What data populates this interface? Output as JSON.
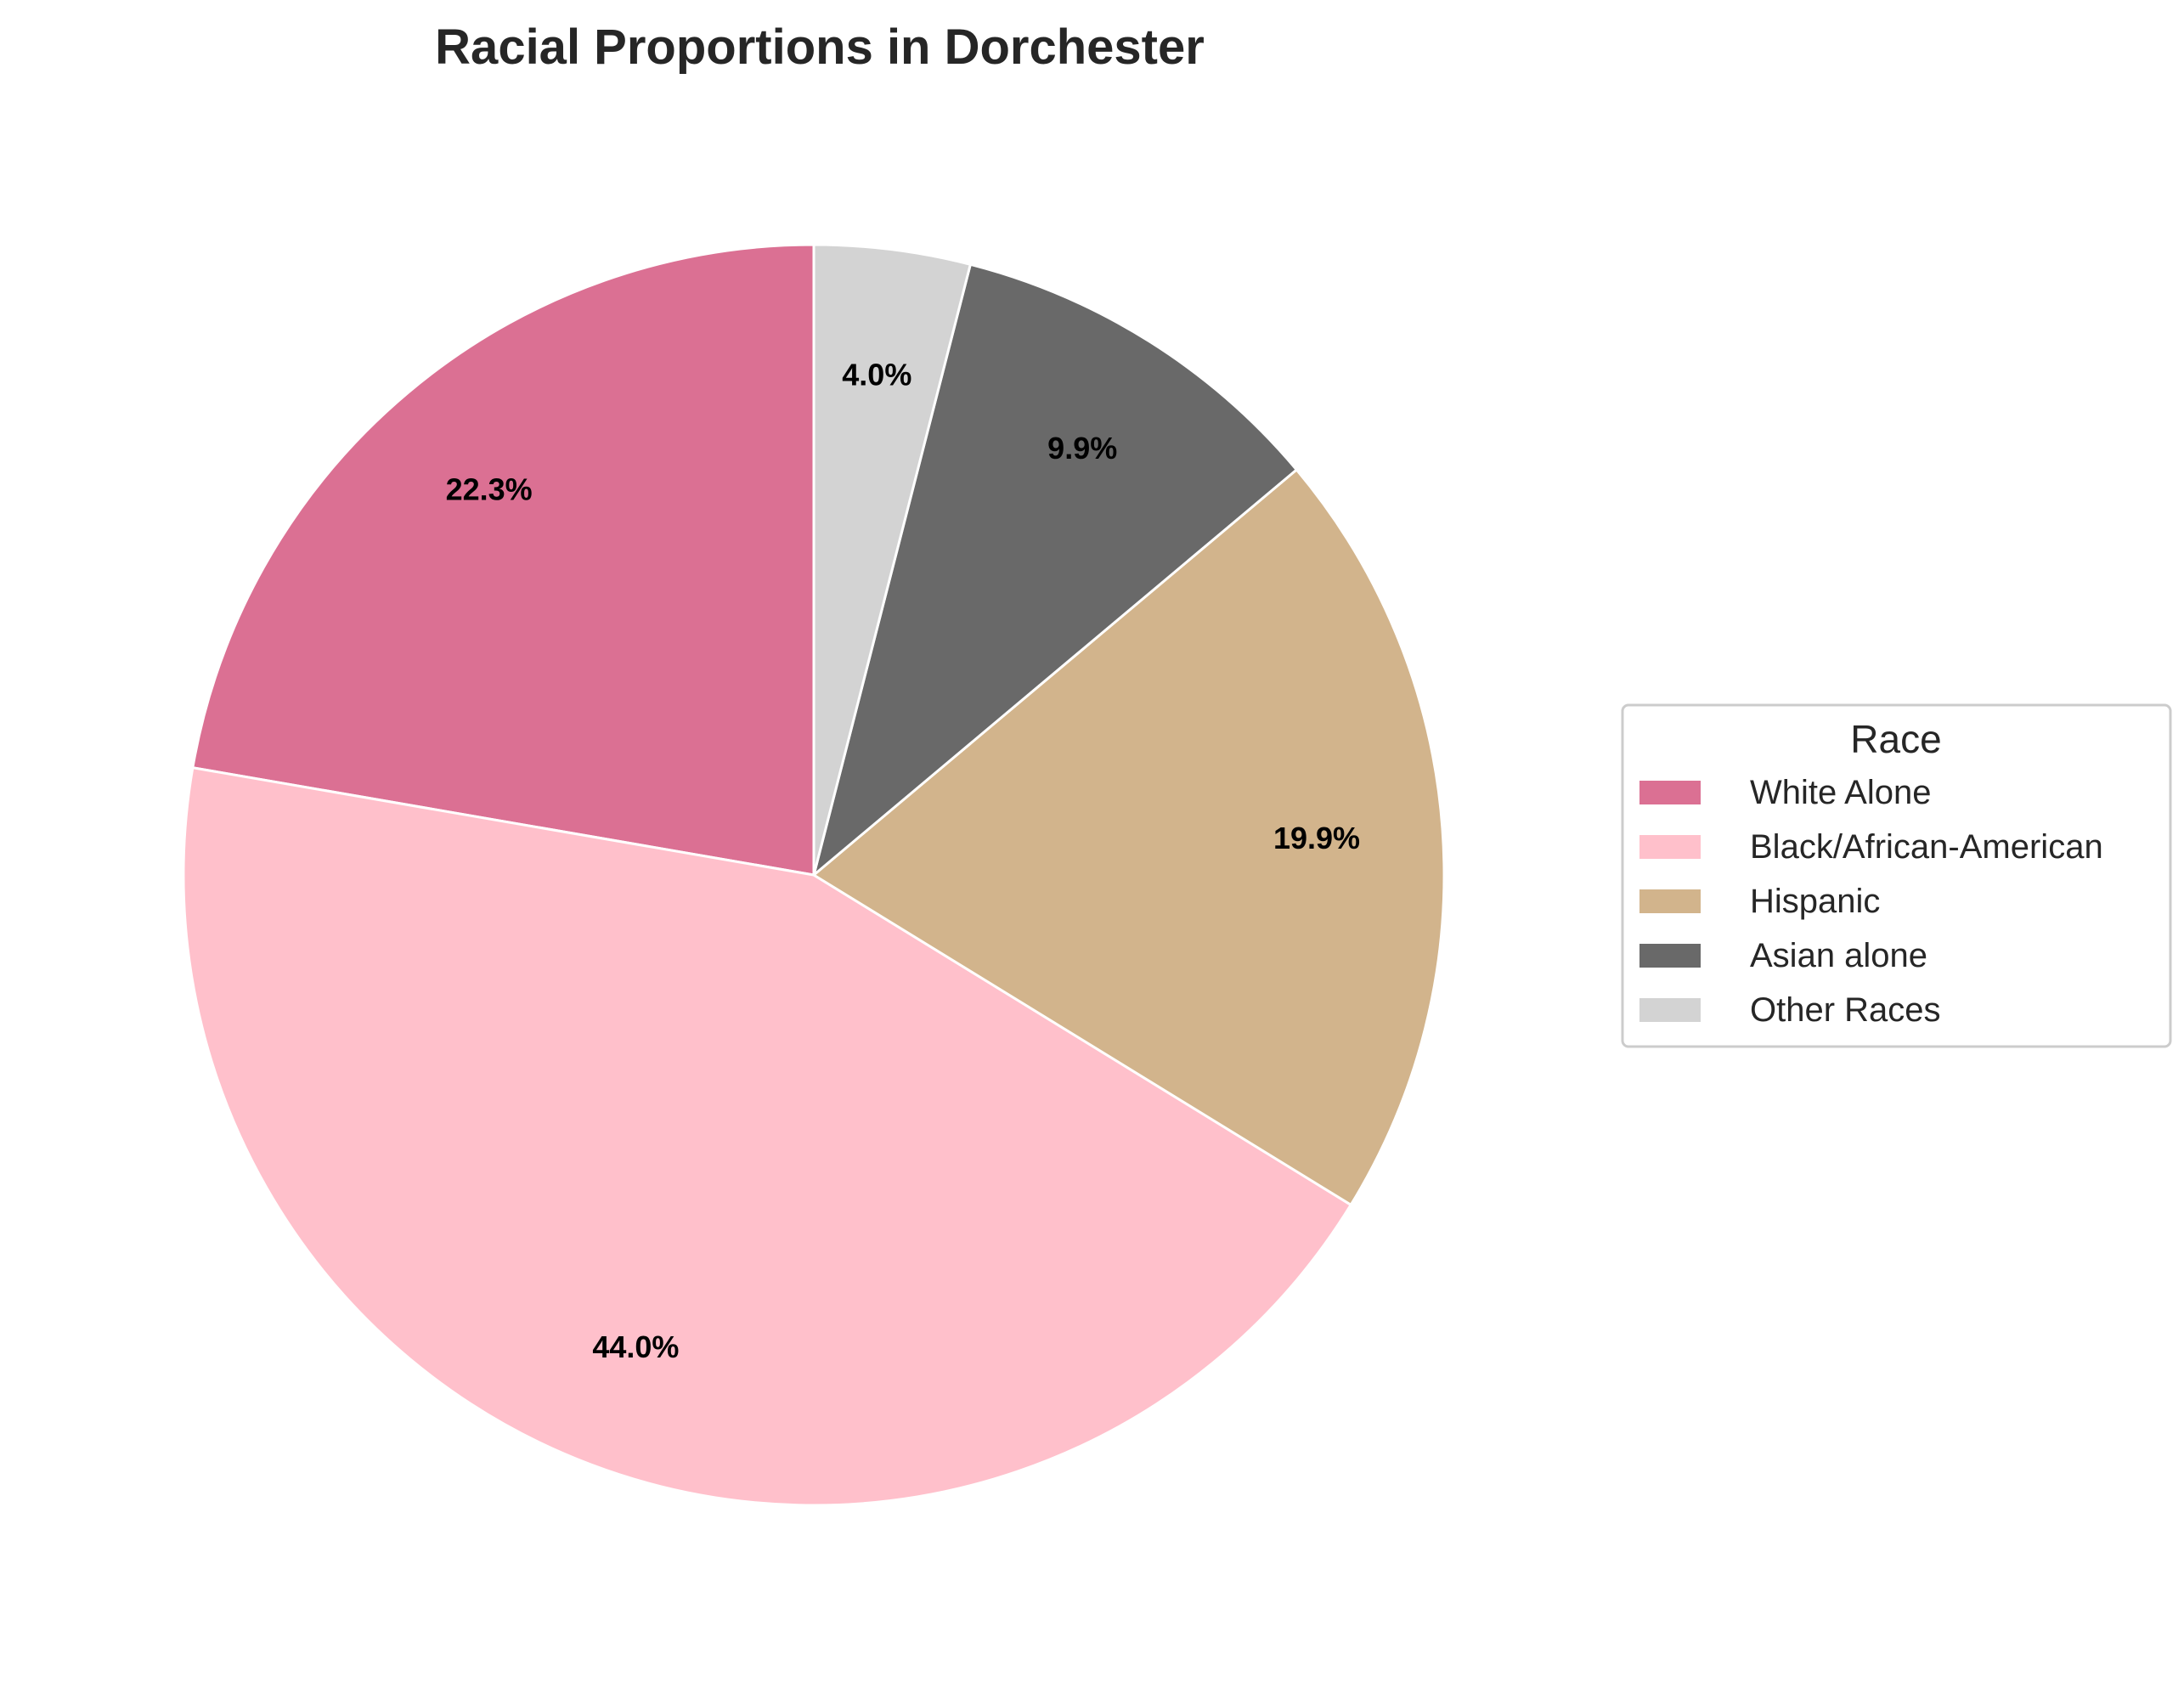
{
  "chart_data": {
    "type": "pie",
    "title": "Racial Proportions in Dorchester",
    "categories": [
      "White Alone",
      "Black/African-American",
      "Hispanic",
      "Asian alone",
      "Other Races"
    ],
    "values": [
      22.3,
      44.0,
      19.9,
      9.9,
      4.0
    ],
    "labels": [
      "22.3%",
      "44.0%",
      "19.9%",
      "9.9%",
      "4.0%"
    ],
    "colors": [
      "#DB7093",
      "#FFC0CB",
      "#D2B48C",
      "#696969",
      "#D3D3D3"
    ],
    "start_angle": "top",
    "direction": "counterclockwise",
    "legend": {
      "title": "Race",
      "placement": "right"
    }
  }
}
